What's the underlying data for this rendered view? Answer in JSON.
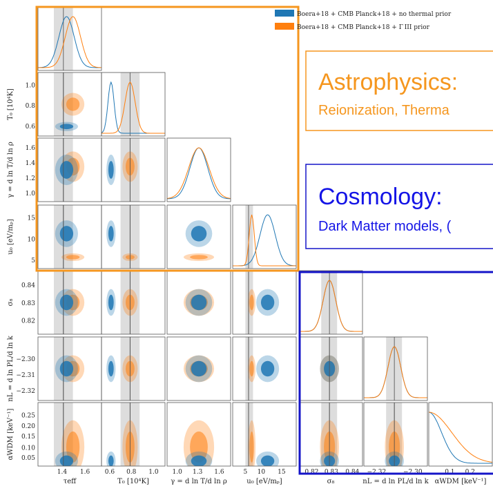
{
  "legend": [
    "Boera+18 + CMB Planck+18 + no thermal prior",
    "Boera+18 + CMB Planck+18 + Γ III prior"
  ],
  "astro_box": {
    "title": "Astrophysics:",
    "subtitle": "Reionization, Therma"
  },
  "cosmo_box": {
    "title": "Cosmology:",
    "subtitle": "Dark Matter models, ("
  },
  "y_axes": [
    {
      "label": "T₀ [10⁴K]",
      "ticks": [
        "1.0",
        "0.8",
        "0.6"
      ]
    },
    {
      "label": "γ = d ln T/d ln ρ",
      "ticks": [
        "1.6",
        "1.4",
        "1.2",
        "1.0"
      ]
    },
    {
      "label": "u₀ [eV/mₚ]",
      "ticks": [
        "15",
        "10",
        "5"
      ]
    },
    {
      "label": "σ₈",
      "ticks": [
        "0.84",
        "0.83",
        "0.82"
      ]
    },
    {
      "label": "nL = d ln PL/d ln k",
      "ticks": [
        "−2.30",
        "−2.31",
        "−2.32"
      ]
    },
    {
      "label": "αWDM [keV⁻¹]",
      "ticks": [
        "0.25",
        "0.20",
        "0.15",
        "0.10",
        "0.05"
      ]
    }
  ],
  "x_axes": [
    {
      "label": "τeff",
      "ticks": [
        "1.4",
        "1.6"
      ]
    },
    {
      "label": "T₀ [10⁴K]",
      "ticks": [
        "0.6",
        "0.8",
        "1.0"
      ]
    },
    {
      "label": "γ = d ln T/d ln ρ",
      "ticks": [
        "1.0",
        "1.3",
        "1.6"
      ]
    },
    {
      "label": "u₀ [eV/mₚ]",
      "ticks": [
        "5",
        "10",
        "15"
      ]
    },
    {
      "label": "σ₈",
      "ticks": [
        "0.82",
        "0.83",
        "0.84"
      ]
    },
    {
      "label": "nL = d ln PL/d ln k",
      "ticks": [
        "−2.32",
        "−2.30"
      ]
    },
    {
      "label": "αWDM [keV⁻¹]",
      "ticks": [
        "0.1",
        "0.2"
      ]
    }
  ]
}
